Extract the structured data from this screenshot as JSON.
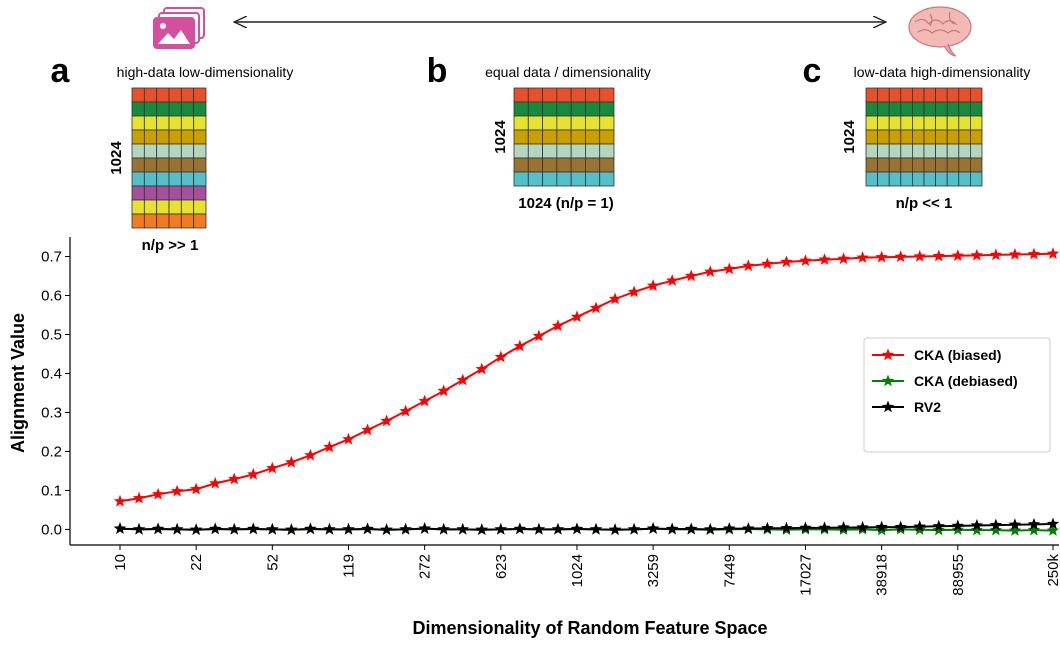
{
  "panels": [
    {
      "letter": "a",
      "title": "high-data low-dimensionality",
      "rows_label": "1024",
      "cols_label": "n/p >> 1",
      "row_colors": [
        "#e8502b",
        "#178a3e",
        "#e7e22e",
        "#c9a000",
        "#b5d6be",
        "#9a7330",
        "#52bfc9",
        "#a64f9d",
        "#e7e22e",
        "#f07b22"
      ]
    },
    {
      "letter": "b",
      "title": "equal data / dimensionality",
      "rows_label": "1024",
      "cols_label": "1024 (n/p = 1)",
      "row_colors": [
        "#e8502b",
        "#178a3e",
        "#e7e22e",
        "#c9a000",
        "#b5d6be",
        "#9a7330",
        "#52bfc9"
      ]
    },
    {
      "letter": "c",
      "title": "low-data high-dimensionality",
      "rows_label": "1024",
      "cols_label": "n/p << 1",
      "row_colors": [
        "#e8502b",
        "#178a3e",
        "#e7e22e",
        "#c9a000",
        "#b5d6be",
        "#9a7330",
        "#52bfc9"
      ]
    }
  ],
  "chart_data": {
    "type": "line",
    "x_label": "Dimensionality of Random Feature Space",
    "y_label": "Alignment Value",
    "categories": [
      "10",
      null,
      null,
      null,
      "22",
      null,
      null,
      null,
      "52",
      null,
      null,
      null,
      "119",
      null,
      null,
      null,
      "272",
      null,
      null,
      null,
      "623",
      null,
      null,
      null,
      "1024",
      null,
      null,
      null,
      "3259",
      null,
      null,
      null,
      "7449",
      null,
      null,
      null,
      "17027",
      null,
      null,
      null,
      "38918",
      null,
      null,
      null,
      "88955",
      null,
      null,
      null,
      null,
      "250k"
    ],
    "series": [
      {
        "name": "CKA (biased)",
        "color": "#ff0000",
        "values": [
          0.072,
          0.08,
          0.09,
          0.098,
          0.103,
          0.118,
          0.129,
          0.141,
          0.157,
          0.172,
          0.19,
          0.211,
          0.231,
          0.255,
          0.278,
          0.303,
          0.329,
          0.355,
          0.383,
          0.411,
          0.442,
          0.47,
          0.496,
          0.522,
          0.545,
          0.568,
          0.591,
          0.609,
          0.625,
          0.638,
          0.65,
          0.661,
          0.668,
          0.676,
          0.681,
          0.686,
          0.689,
          0.692,
          0.694,
          0.697,
          0.698,
          0.699,
          0.7,
          0.701,
          0.702,
          0.703,
          0.704,
          0.705,
          0.706,
          0.707
        ]
      },
      {
        "name": "CKA (debiased)",
        "color": "#008000",
        "values": [
          0.002,
          0.0,
          0.001,
          0.0,
          -0.001,
          0.001,
          0.0,
          0.001,
          0.0,
          -0.001,
          0.001,
          0.0,
          0.0,
          0.001,
          -0.001,
          0.0,
          0.002,
          0.0,
          0.0,
          -0.001,
          0.0,
          0.001,
          0.0,
          0.0,
          0.001,
          0.0,
          -0.001,
          0.0,
          0.002,
          0.0,
          0.0,
          -0.001,
          0.0,
          0.001,
          0.0,
          -0.001,
          0.0,
          0.0,
          -0.001,
          0.0,
          -0.002,
          0.0,
          -0.001,
          -0.002,
          -0.001,
          -0.002,
          -0.002,
          -0.003,
          -0.002,
          -0.003
        ]
      },
      {
        "name": "RV2",
        "color": "#000000",
        "values": [
          0.002,
          0.0,
          0.001,
          0.0,
          -0.001,
          0.001,
          0.0,
          0.001,
          0.0,
          -0.001,
          0.001,
          0.0,
          0.0,
          0.001,
          -0.001,
          0.0,
          0.002,
          0.0,
          0.0,
          -0.001,
          0.0,
          0.001,
          0.0,
          0.0,
          0.001,
          0.0,
          -0.001,
          0.0,
          0.002,
          0.001,
          0.001,
          0.0,
          0.002,
          0.002,
          0.003,
          0.003,
          0.004,
          0.004,
          0.005,
          0.005,
          0.006,
          0.006,
          0.007,
          0.008,
          0.009,
          0.01,
          0.011,
          0.012,
          0.013,
          0.014
        ]
      }
    ],
    "ylim": [
      -0.04,
      0.75
    ],
    "yticks": [
      {
        "value": 0,
        "label": "0.0"
      },
      0.1,
      0.2,
      0.3,
      0.4,
      0.5,
      0.6,
      0.7
    ],
    "legend": "center right"
  }
}
